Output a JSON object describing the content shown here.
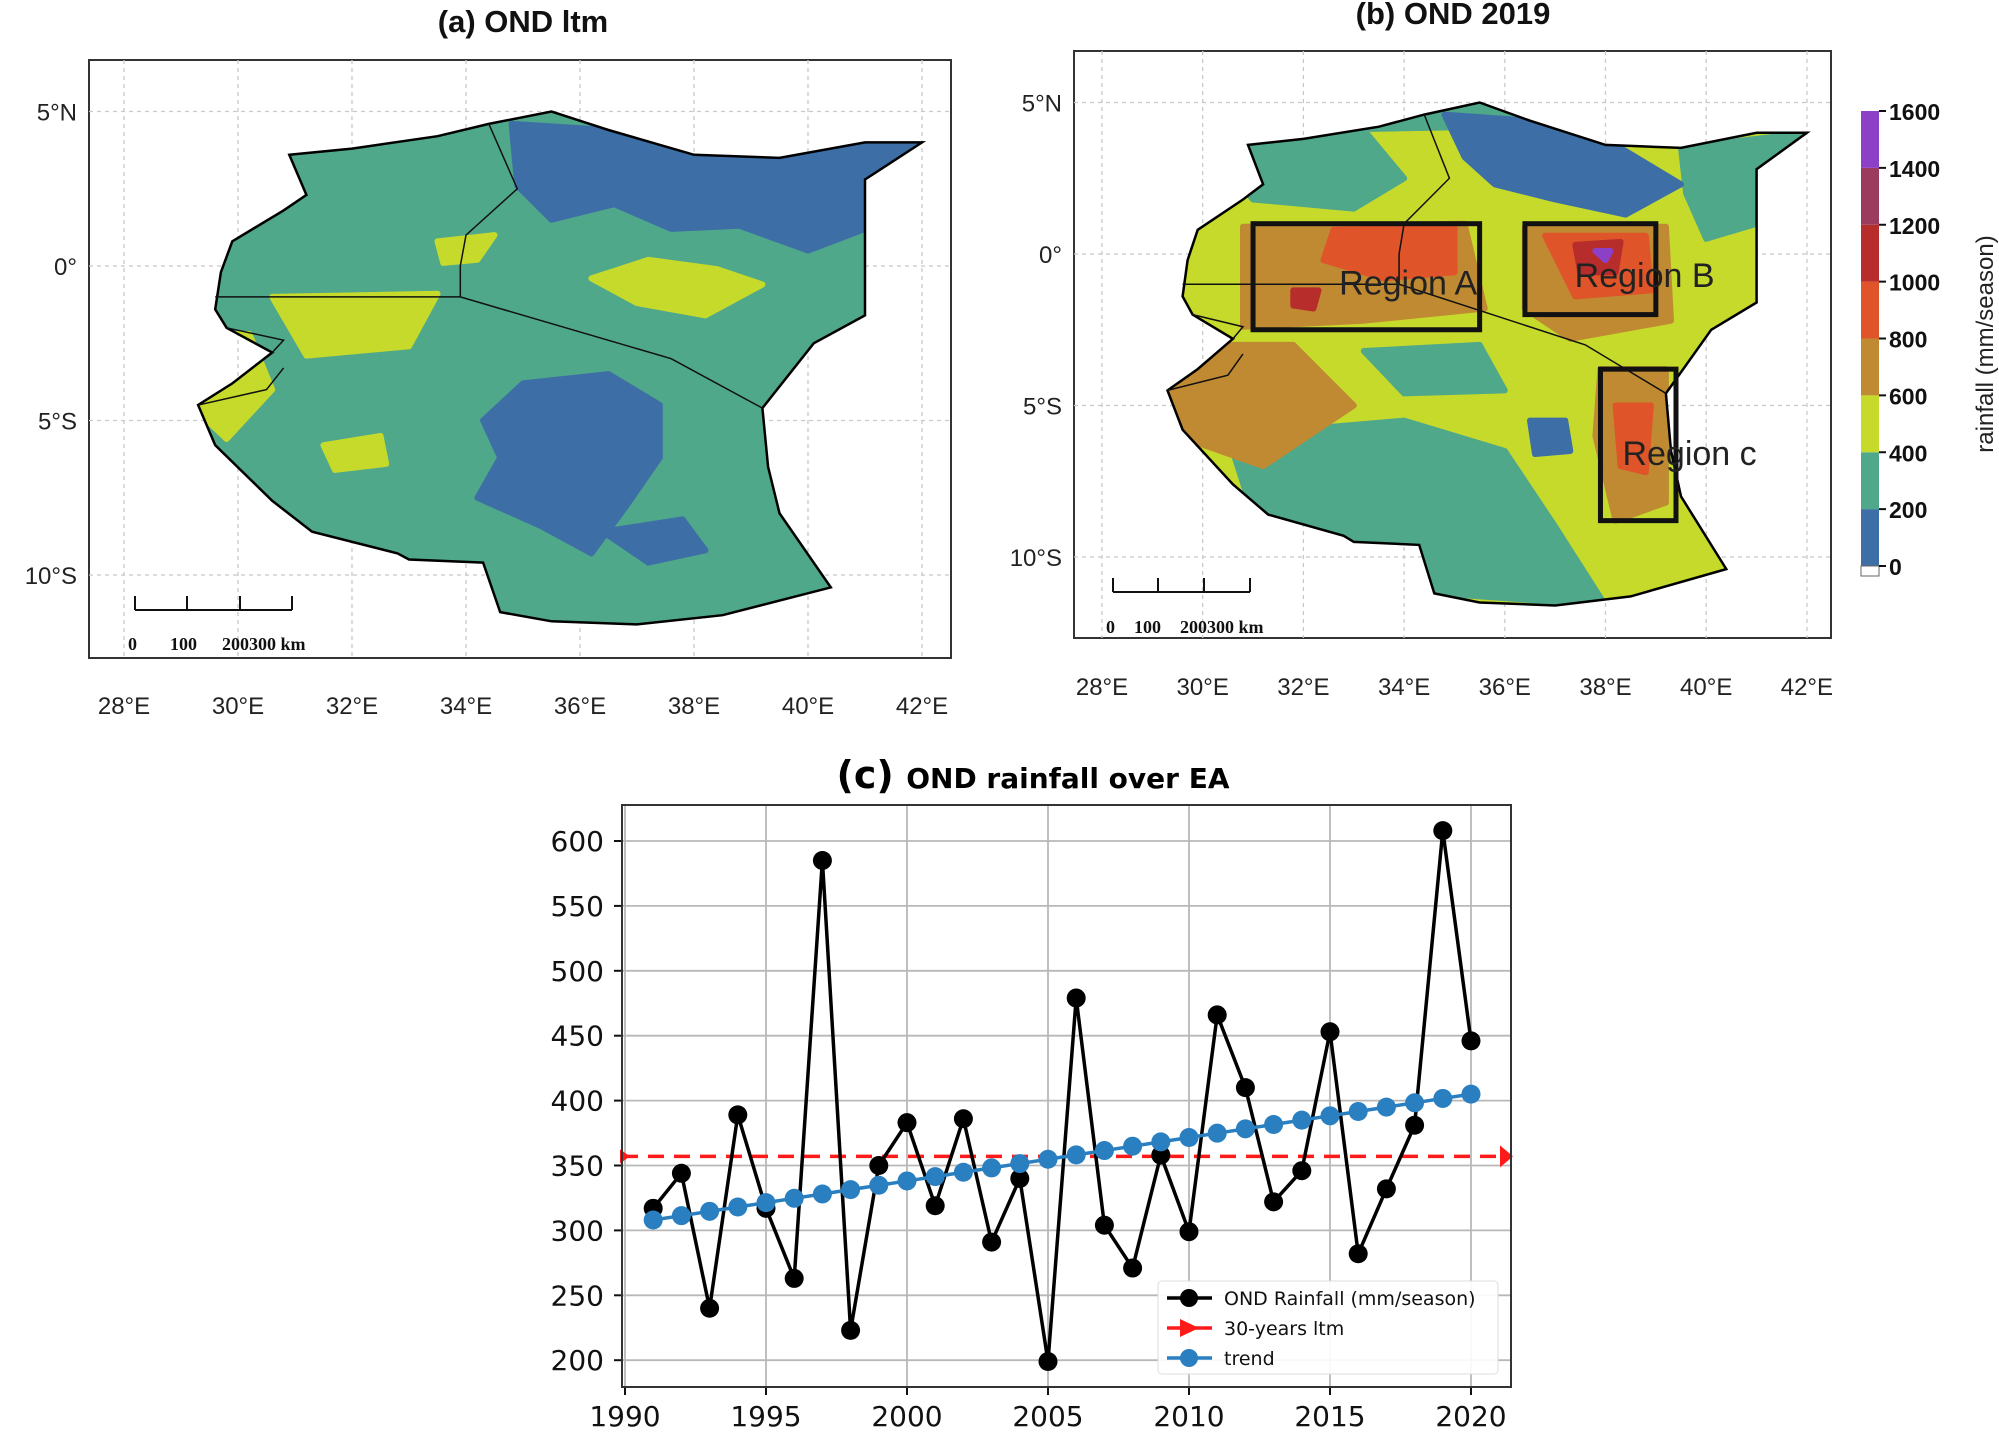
{
  "colors": {
    "bins": [
      "#3d6fa6",
      "#4fa889",
      "#c6da2c",
      "#c08a32",
      "#df5428",
      "#b72d2b",
      "#9b3b5e",
      "#8c40c8"
    ],
    "rain": "#000000",
    "ltm": "#ff1a1a",
    "trend": "#2a7fc0"
  },
  "panel_a": {
    "title": "(a) OND ltm",
    "lat_labels": [
      "5°N",
      "0°",
      "5°S",
      "10°S"
    ],
    "lon_labels": [
      "28°E",
      "30°E",
      "32°E",
      "34°E",
      "36°E",
      "38°E",
      "40°E",
      "42°E"
    ],
    "scale_labels": [
      "0",
      "100",
      "200300 km"
    ]
  },
  "panel_b": {
    "title": "(b) OND 2019",
    "lat_labels": [
      "5°N",
      "0°",
      "5°S",
      "10°S"
    ],
    "lon_labels": [
      "28°E",
      "30°E",
      "32°E",
      "34°E",
      "36°E",
      "38°E",
      "40°E",
      "42°E"
    ],
    "scale_labels": [
      "0",
      "100",
      "200300 km"
    ],
    "regions": [
      "Region A",
      "Region B",
      "Region c"
    ],
    "colorbar": {
      "label": "rainfall (mm/season)",
      "ticks": [
        "0",
        "200",
        "400",
        "600",
        "800",
        "1000",
        "1200",
        "1400",
        "1600"
      ]
    }
  },
  "chart_data": {
    "type": "line",
    "title_prefix": "(c)",
    "title": "OND rainfall over EA",
    "xlabel": "",
    "ylabel": "",
    "xlim": [
      1989.8,
      2021.5
    ],
    "ylim": [
      185,
      630
    ],
    "xticks": [
      "1990",
      "1995",
      "2000",
      "2005",
      "2010",
      "2015",
      "2020"
    ],
    "yticks": [
      "200",
      "250",
      "300",
      "350",
      "400",
      "450",
      "500",
      "550",
      "600"
    ],
    "grid": true,
    "legend_position": "lower-right",
    "x": [
      1991,
      1992,
      1993,
      1994,
      1995,
      1996,
      1997,
      1998,
      1999,
      2000,
      2001,
      2002,
      2003,
      2004,
      2005,
      2006,
      2007,
      2008,
      2009,
      2010,
      2011,
      2012,
      2013,
      2014,
      2015,
      2016,
      2017,
      2018,
      2019,
      2020
    ],
    "series": [
      {
        "name": "OND Rainfall (mm/season)",
        "values": [
          317,
          344,
          240,
          389,
          317,
          263,
          585,
          223,
          350,
          383,
          319,
          386,
          291,
          340,
          199,
          479,
          304,
          271,
          358,
          299,
          466,
          410,
          322,
          346,
          453,
          282,
          332,
          381,
          608,
          446
        ]
      },
      {
        "name": "30-years ltm",
        "value": 357
      },
      {
        "name": "trend",
        "start": 308,
        "end": 405
      }
    ]
  }
}
